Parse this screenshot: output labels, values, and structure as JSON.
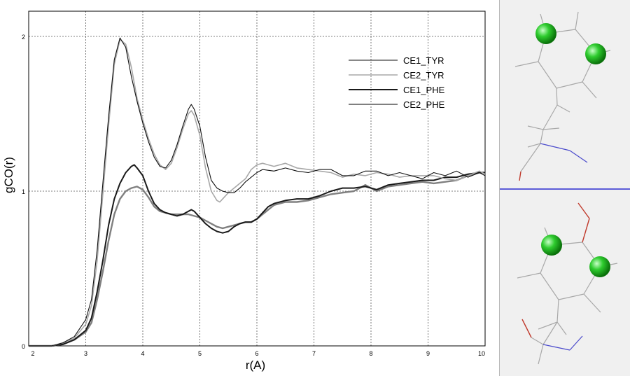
{
  "chart_data": {
    "type": "line",
    "xlabel": "r(A)",
    "ylabel": "gCO(r)",
    "xlim": [
      2,
      10
    ],
    "ylim": [
      0,
      2.2
    ],
    "x_ticks": [
      "2",
      "3",
      "4",
      "5",
      "6",
      "7",
      "8",
      "9",
      "10"
    ],
    "y_ticks": [
      "0",
      "1",
      "2"
    ],
    "grid": true,
    "legend_position": "top-right",
    "series": [
      {
        "name": "CE1_TYR",
        "color": "#101010",
        "width": 1.1,
        "points": [
          [
            2.0,
            0
          ],
          [
            2.4,
            0
          ],
          [
            2.6,
            0.02
          ],
          [
            2.8,
            0.06
          ],
          [
            3.0,
            0.17
          ],
          [
            3.1,
            0.3
          ],
          [
            3.2,
            0.62
          ],
          [
            3.3,
            1.05
          ],
          [
            3.4,
            1.48
          ],
          [
            3.5,
            1.85
          ],
          [
            3.6,
            1.99
          ],
          [
            3.7,
            1.93
          ],
          [
            3.8,
            1.74
          ],
          [
            3.9,
            1.58
          ],
          [
            4.0,
            1.44
          ],
          [
            4.1,
            1.32
          ],
          [
            4.2,
            1.22
          ],
          [
            4.3,
            1.16
          ],
          [
            4.4,
            1.15
          ],
          [
            4.5,
            1.2
          ],
          [
            4.6,
            1.3
          ],
          [
            4.7,
            1.42
          ],
          [
            4.8,
            1.53
          ],
          [
            4.85,
            1.56
          ],
          [
            4.9,
            1.53
          ],
          [
            5.0,
            1.42
          ],
          [
            5.1,
            1.22
          ],
          [
            5.2,
            1.07
          ],
          [
            5.3,
            1.02
          ],
          [
            5.4,
            1.0
          ],
          [
            5.5,
            0.99
          ],
          [
            5.6,
            0.99
          ],
          [
            5.7,
            1.02
          ],
          [
            5.8,
            1.06
          ],
          [
            5.9,
            1.09
          ],
          [
            6.0,
            1.12
          ],
          [
            6.1,
            1.14
          ],
          [
            6.3,
            1.13
          ],
          [
            6.5,
            1.15
          ],
          [
            6.7,
            1.13
          ],
          [
            6.9,
            1.12
          ],
          [
            7.1,
            1.14
          ],
          [
            7.3,
            1.14
          ],
          [
            7.5,
            1.1
          ],
          [
            7.7,
            1.1
          ],
          [
            7.9,
            1.13
          ],
          [
            8.1,
            1.13
          ],
          [
            8.3,
            1.1
          ],
          [
            8.5,
            1.12
          ],
          [
            8.7,
            1.1
          ],
          [
            8.9,
            1.08
          ],
          [
            9.1,
            1.12
          ],
          [
            9.3,
            1.1
          ],
          [
            9.5,
            1.13
          ],
          [
            9.7,
            1.09
          ],
          [
            9.9,
            1.12
          ],
          [
            10.0,
            1.1
          ]
        ]
      },
      {
        "name": "CE2_TYR",
        "color": "#a8a8a8",
        "width": 1.6,
        "points": [
          [
            2.0,
            0
          ],
          [
            2.4,
            0
          ],
          [
            2.6,
            0.02
          ],
          [
            2.8,
            0.05
          ],
          [
            3.0,
            0.14
          ],
          [
            3.1,
            0.26
          ],
          [
            3.2,
            0.55
          ],
          [
            3.3,
            0.98
          ],
          [
            3.4,
            1.42
          ],
          [
            3.5,
            1.82
          ],
          [
            3.6,
            1.98
          ],
          [
            3.7,
            1.95
          ],
          [
            3.8,
            1.8
          ],
          [
            3.9,
            1.6
          ],
          [
            4.0,
            1.46
          ],
          [
            4.1,
            1.34
          ],
          [
            4.2,
            1.24
          ],
          [
            4.3,
            1.17
          ],
          [
            4.4,
            1.14
          ],
          [
            4.5,
            1.18
          ],
          [
            4.6,
            1.28
          ],
          [
            4.7,
            1.4
          ],
          [
            4.8,
            1.5
          ],
          [
            4.85,
            1.52
          ],
          [
            4.9,
            1.49
          ],
          [
            5.0,
            1.36
          ],
          [
            5.1,
            1.15
          ],
          [
            5.2,
            1.0
          ],
          [
            5.3,
            0.94
          ],
          [
            5.35,
            0.93
          ],
          [
            5.4,
            0.95
          ],
          [
            5.5,
            0.99
          ],
          [
            5.6,
            1.02
          ],
          [
            5.7,
            1.05
          ],
          [
            5.8,
            1.08
          ],
          [
            5.9,
            1.14
          ],
          [
            6.0,
            1.17
          ],
          [
            6.1,
            1.18
          ],
          [
            6.3,
            1.16
          ],
          [
            6.5,
            1.18
          ],
          [
            6.7,
            1.15
          ],
          [
            6.9,
            1.14
          ],
          [
            7.1,
            1.13
          ],
          [
            7.3,
            1.12
          ],
          [
            7.5,
            1.09
          ],
          [
            7.7,
            1.11
          ],
          [
            7.9,
            1.1
          ],
          [
            8.1,
            1.12
          ],
          [
            8.3,
            1.11
          ],
          [
            8.5,
            1.09
          ],
          [
            8.7,
            1.1
          ],
          [
            8.9,
            1.1
          ],
          [
            9.1,
            1.1
          ],
          [
            9.3,
            1.08
          ],
          [
            9.5,
            1.07
          ],
          [
            9.7,
            1.1
          ],
          [
            9.9,
            1.13
          ],
          [
            10.0,
            1.11
          ]
        ]
      },
      {
        "name": "CE1_PHE",
        "color": "#1a1a1a",
        "width": 2.0,
        "points": [
          [
            2.0,
            0
          ],
          [
            2.4,
            0
          ],
          [
            2.6,
            0.01
          ],
          [
            2.8,
            0.04
          ],
          [
            3.0,
            0.1
          ],
          [
            3.1,
            0.18
          ],
          [
            3.2,
            0.35
          ],
          [
            3.3,
            0.55
          ],
          [
            3.4,
            0.78
          ],
          [
            3.5,
            0.95
          ],
          [
            3.6,
            1.05
          ],
          [
            3.7,
            1.12
          ],
          [
            3.8,
            1.16
          ],
          [
            3.85,
            1.17
          ],
          [
            3.9,
            1.15
          ],
          [
            4.0,
            1.1
          ],
          [
            4.1,
            1.0
          ],
          [
            4.2,
            0.92
          ],
          [
            4.3,
            0.88
          ],
          [
            4.4,
            0.86
          ],
          [
            4.5,
            0.85
          ],
          [
            4.6,
            0.84
          ],
          [
            4.7,
            0.85
          ],
          [
            4.8,
            0.87
          ],
          [
            4.85,
            0.88
          ],
          [
            4.9,
            0.87
          ],
          [
            5.0,
            0.83
          ],
          [
            5.1,
            0.79
          ],
          [
            5.2,
            0.76
          ],
          [
            5.3,
            0.74
          ],
          [
            5.4,
            0.73
          ],
          [
            5.5,
            0.74
          ],
          [
            5.6,
            0.77
          ],
          [
            5.7,
            0.79
          ],
          [
            5.8,
            0.8
          ],
          [
            5.9,
            0.8
          ],
          [
            6.0,
            0.82
          ],
          [
            6.1,
            0.86
          ],
          [
            6.2,
            0.9
          ],
          [
            6.3,
            0.92
          ],
          [
            6.5,
            0.94
          ],
          [
            6.7,
            0.95
          ],
          [
            6.9,
            0.95
          ],
          [
            7.1,
            0.97
          ],
          [
            7.3,
            1.0
          ],
          [
            7.5,
            1.02
          ],
          [
            7.7,
            1.02
          ],
          [
            7.9,
            1.03
          ],
          [
            8.1,
            1.01
          ],
          [
            8.3,
            1.04
          ],
          [
            8.5,
            1.05
          ],
          [
            8.7,
            1.06
          ],
          [
            8.9,
            1.07
          ],
          [
            9.1,
            1.07
          ],
          [
            9.3,
            1.09
          ],
          [
            9.5,
            1.09
          ],
          [
            9.7,
            1.11
          ],
          [
            9.9,
            1.12
          ],
          [
            10.0,
            1.12
          ]
        ]
      },
      {
        "name": "CE2_PHE",
        "color": "#808080",
        "width": 2.4,
        "points": [
          [
            2.0,
            0
          ],
          [
            2.4,
            0
          ],
          [
            2.6,
            0.01
          ],
          [
            2.8,
            0.04
          ],
          [
            3.0,
            0.09
          ],
          [
            3.1,
            0.15
          ],
          [
            3.2,
            0.3
          ],
          [
            3.3,
            0.48
          ],
          [
            3.4,
            0.68
          ],
          [
            3.5,
            0.85
          ],
          [
            3.6,
            0.95
          ],
          [
            3.7,
            1.0
          ],
          [
            3.8,
            1.02
          ],
          [
            3.9,
            1.03
          ],
          [
            4.0,
            1.01
          ],
          [
            4.1,
            0.96
          ],
          [
            4.2,
            0.9
          ],
          [
            4.3,
            0.87
          ],
          [
            4.4,
            0.86
          ],
          [
            4.5,
            0.85
          ],
          [
            4.6,
            0.85
          ],
          [
            4.7,
            0.85
          ],
          [
            4.8,
            0.85
          ],
          [
            4.9,
            0.84
          ],
          [
            5.0,
            0.83
          ],
          [
            5.1,
            0.81
          ],
          [
            5.2,
            0.79
          ],
          [
            5.3,
            0.77
          ],
          [
            5.4,
            0.76
          ],
          [
            5.5,
            0.77
          ],
          [
            5.6,
            0.78
          ],
          [
            5.7,
            0.79
          ],
          [
            5.8,
            0.8
          ],
          [
            5.9,
            0.8
          ],
          [
            6.0,
            0.82
          ],
          [
            6.1,
            0.85
          ],
          [
            6.2,
            0.88
          ],
          [
            6.3,
            0.91
          ],
          [
            6.5,
            0.93
          ],
          [
            6.7,
            0.93
          ],
          [
            6.9,
            0.94
          ],
          [
            7.1,
            0.96
          ],
          [
            7.3,
            0.98
          ],
          [
            7.5,
            0.99
          ],
          [
            7.7,
            1.0
          ],
          [
            7.9,
            1.04
          ],
          [
            8.1,
            1.0
          ],
          [
            8.3,
            1.03
          ],
          [
            8.5,
            1.04
          ],
          [
            8.7,
            1.05
          ],
          [
            8.9,
            1.06
          ],
          [
            9.1,
            1.05
          ],
          [
            9.3,
            1.06
          ],
          [
            9.5,
            1.07
          ],
          [
            9.7,
            1.1
          ],
          [
            9.9,
            1.12
          ],
          [
            10.0,
            1.12
          ]
        ]
      }
    ]
  },
  "molecules": {
    "atom_color": "#2ecc2e",
    "divider_color": "#2b2bd0"
  }
}
